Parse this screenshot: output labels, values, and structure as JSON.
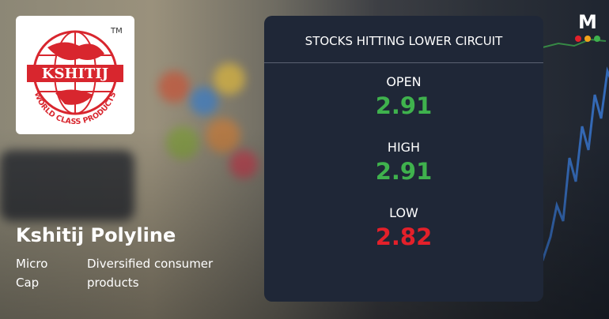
{
  "logo": {
    "name": "KSHITIJ",
    "tagline": "WORLD CLASS PRODUCTS",
    "trademark": "TM"
  },
  "company": {
    "name": "Kshitij Polyline",
    "cap": "Micro Cap",
    "sector": "Diversified consumer products"
  },
  "brand": "M",
  "panel": {
    "title": "STOCKS HITTING LOWER CIRCUIT",
    "quotes": [
      {
        "label": "OPEN",
        "value": 2.91,
        "color": "#3fb24d"
      },
      {
        "label": "HIGH",
        "value": 2.91,
        "color": "#3fb24d"
      },
      {
        "label": "LOW",
        "value": 2.82,
        "color": "#e3202a"
      }
    ]
  }
}
